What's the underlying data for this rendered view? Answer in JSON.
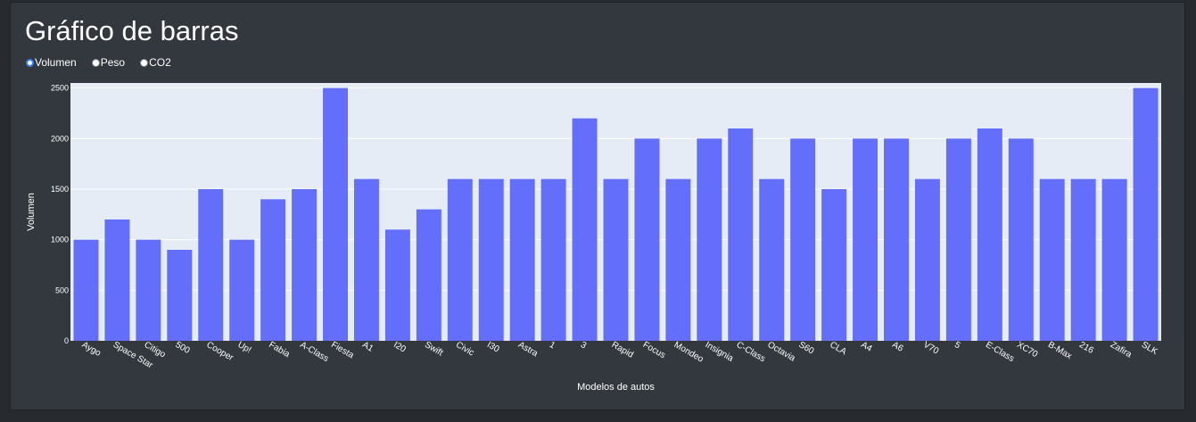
{
  "title": "Gráfico de barras",
  "radio_options": [
    {
      "label": "Volumen",
      "checked": true
    },
    {
      "label": "Peso",
      "checked": false
    },
    {
      "label": "CO2",
      "checked": false
    }
  ],
  "colors": {
    "bar": "#636efa",
    "plot_bg": "#e5ecf6",
    "grid": "#ffffff",
    "page_bg": "#32383e"
  },
  "chart_data": {
    "type": "bar",
    "xlabel": "Modelos de autos",
    "ylabel": "Volumen",
    "ylim": [
      0,
      2550
    ],
    "yticks": [
      0,
      500,
      1000,
      1500,
      2000,
      2500
    ],
    "grid": true,
    "categories": [
      "Aygo",
      "Space Star",
      "Citigo",
      "500",
      "Cooper",
      "Up!",
      "Fabia",
      "A-Class",
      "Fiesta",
      "A1",
      "I20",
      "Swift",
      "Civic",
      "I30",
      "Astra",
      "1",
      "3",
      "Rapid",
      "Focus",
      "Mondeo",
      "Insignia",
      "C-Class",
      "Octavia",
      "S60",
      "CLA",
      "A4",
      "A6",
      "V70",
      "5",
      "E-Class",
      "XC70",
      "B-Max",
      "216",
      "Zafira",
      "SLK"
    ],
    "values": [
      1000,
      1200,
      1000,
      900,
      1500,
      1000,
      1400,
      1500,
      2500,
      1600,
      1100,
      1300,
      1600,
      1600,
      1600,
      1600,
      2200,
      1600,
      2000,
      1600,
      2000,
      2100,
      1600,
      2000,
      1500,
      2000,
      2000,
      1600,
      2000,
      2100,
      2000,
      1600,
      1600,
      1600,
      2500
    ]
  }
}
